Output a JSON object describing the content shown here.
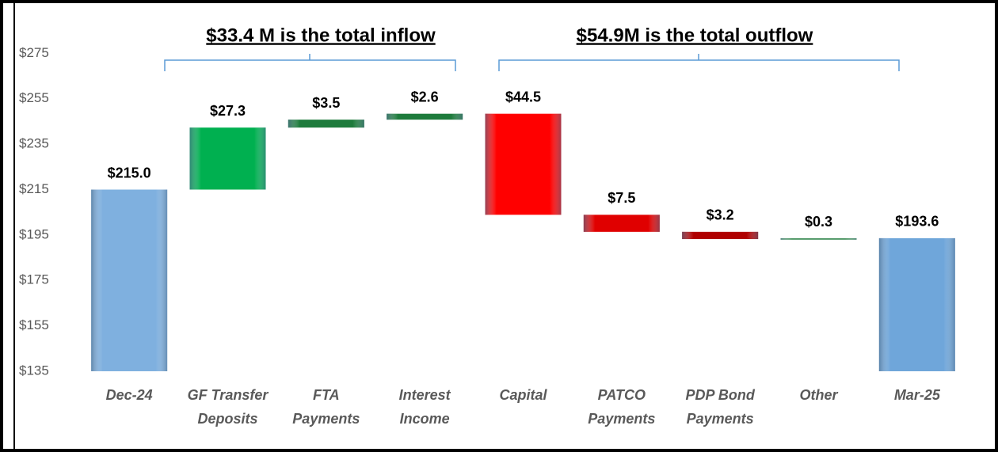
{
  "chart_data": {
    "type": "waterfall",
    "annotations": [
      "$33.4 M is the total inflow",
      "$54.9M is the total outflow"
    ],
    "categories": [
      "Dec-24",
      "GF Transfer Deposits",
      "FTA Payments",
      "Interest Income",
      "Capital",
      "PATCO Payments",
      "PDP Bond Payments",
      "Other",
      "Mar-25"
    ],
    "values": [
      215.0,
      27.3,
      3.5,
      2.6,
      44.5,
      7.5,
      3.2,
      0.3,
      193.6
    ],
    "value_labels": [
      "$215.0",
      "$27.3",
      "$3.5",
      "$2.6",
      "$44.5",
      "$7.5",
      "$3.2",
      "$0.3",
      "$193.6"
    ],
    "bar_types": [
      "total",
      "increase",
      "increase",
      "increase",
      "decrease",
      "decrease",
      "decrease",
      "increase",
      "total"
    ],
    "colors": [
      "#7fb0df",
      "#00b050",
      "#1e7b3c",
      "#1e7b3c",
      "#ff0000",
      "#e00000",
      "#b00000",
      "#1e7b3c",
      "#6fa6da"
    ],
    "ylim": [
      135,
      295
    ],
    "yticks": [
      {
        "value": 135,
        "label": "$135"
      },
      {
        "value": 155,
        "label": "$155"
      },
      {
        "value": 175,
        "label": "$175"
      },
      {
        "value": 195,
        "label": "$195"
      },
      {
        "value": 215,
        "label": "$215"
      },
      {
        "value": 235,
        "label": "$235"
      },
      {
        "value": 255,
        "label": "$255"
      },
      {
        "value": 275,
        "label": "$275"
      }
    ],
    "grid": false
  }
}
